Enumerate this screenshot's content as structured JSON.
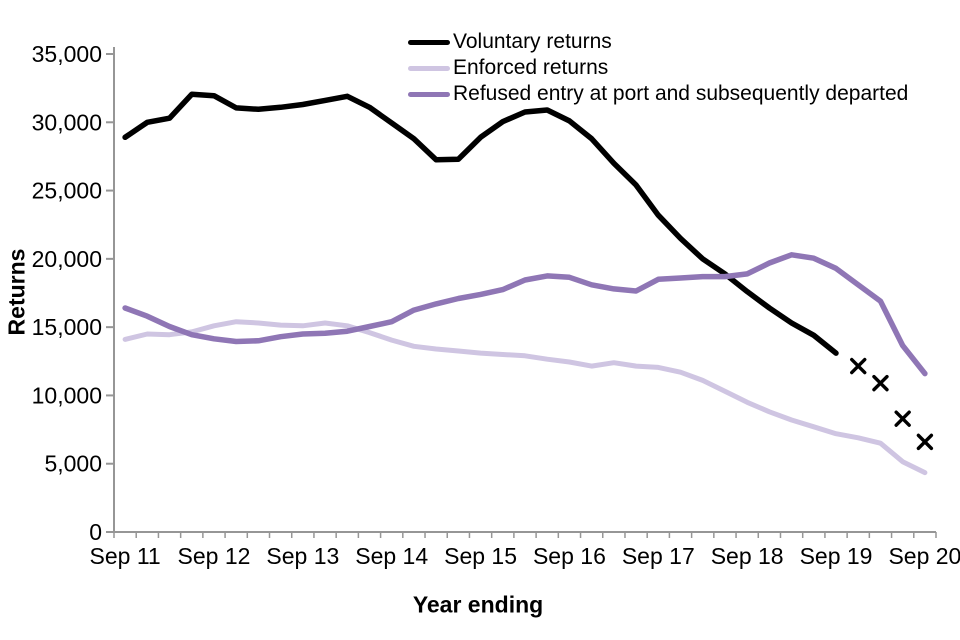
{
  "chart_data": {
    "type": "line",
    "title": "",
    "xlabel": "Year ending",
    "ylabel": "Returns",
    "ylim": [
      0,
      35000
    ],
    "y_tick_step": 5000,
    "y_tick_labels": [
      "0",
      "5,000",
      "10,000",
      "15,000",
      "20,000",
      "25,000",
      "30,000",
      "35,000"
    ],
    "x_tick_labels": [
      "Sep 11",
      "Sep 12",
      "Sep 13",
      "Sep 14",
      "Sep 15",
      "Sep 16",
      "Sep 17",
      "Sep 18",
      "Sep 19",
      "Sep 20"
    ],
    "x_quarters": 37,
    "x_minor_ticks_per_year": 4,
    "axis_color": "#969696",
    "grid": false,
    "legend_position": "top-center-left-aligned",
    "series": [
      {
        "id": "voluntary-returns",
        "name": "Voluntary returns",
        "color": "#000000",
        "stroke_width": 5.5,
        "values": [
          28900,
          30000,
          30300,
          32050,
          31950,
          31050,
          30950,
          31100,
          31300,
          31600,
          31900,
          31100,
          29950,
          28800,
          27250,
          27300,
          28900,
          30050,
          30750,
          30900,
          30100,
          28800,
          27000,
          25400,
          23200,
          21500,
          20000,
          18900,
          17600,
          16400,
          15300,
          14400,
          13100
        ]
      },
      {
        "id": "enforced-returns",
        "name": "Enforced returns",
        "color": "#CFC5E2",
        "stroke_width": 5,
        "values": [
          14100,
          14500,
          14450,
          14650,
          15100,
          15400,
          15300,
          15150,
          15100,
          15300,
          15100,
          14600,
          14050,
          13600,
          13400,
          13250,
          13100,
          13000,
          12900,
          12650,
          12450,
          12150,
          12400,
          12150,
          12050,
          11700,
          11100,
          10300,
          9500,
          8800,
          8200,
          7700,
          7200,
          6900,
          6500,
          5150,
          4350
        ]
      },
      {
        "id": "refused-entry-at-port",
        "name": "Refused entry at port and subsequently departed",
        "color": "#8F76B5",
        "stroke_width": 5.5,
        "values": [
          16400,
          15800,
          15050,
          14450,
          14150,
          13950,
          14000,
          14300,
          14500,
          14550,
          14700,
          15050,
          15400,
          16250,
          16700,
          17100,
          17400,
          17750,
          18450,
          18750,
          18650,
          18100,
          17800,
          17650,
          18500,
          18600,
          18700,
          18700,
          18900,
          19700,
          20300,
          20050,
          19300,
          18100,
          16900,
          13650,
          11600
        ]
      }
    ],
    "provisional_markers": {
      "id": "provisional-x-markers",
      "symbol": "x",
      "color": "#000000",
      "points": [
        {
          "quarter": 33,
          "value": 12150
        },
        {
          "quarter": 34,
          "value": 10900
        },
        {
          "quarter": 35,
          "value": 8300
        },
        {
          "quarter": 36,
          "value": 6600
        }
      ]
    }
  }
}
